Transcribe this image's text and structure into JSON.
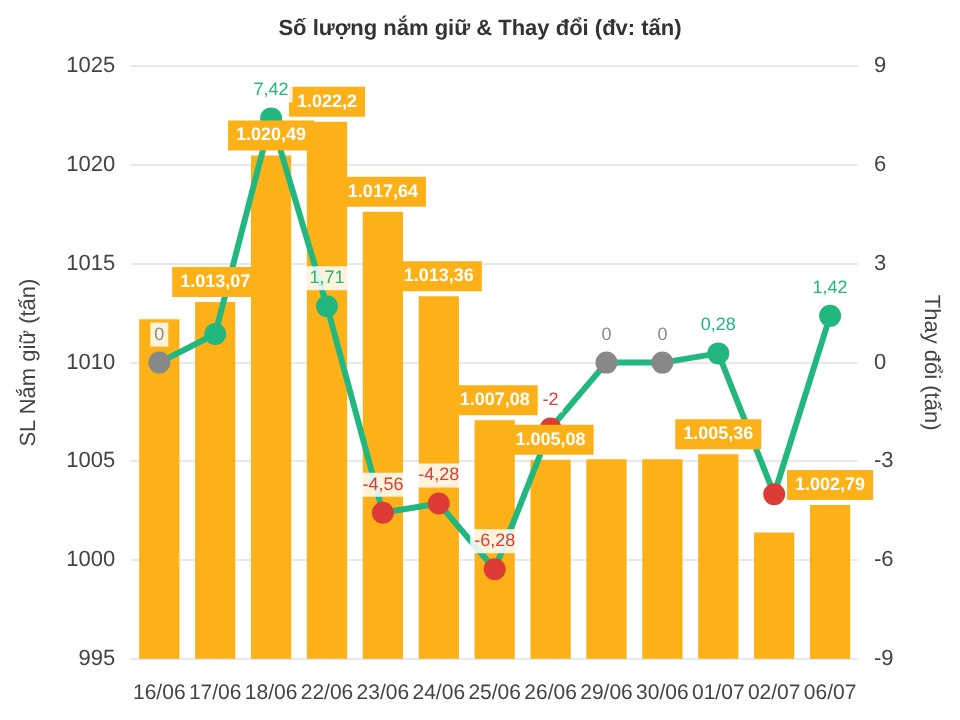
{
  "chart_data": {
    "type": "bar",
    "title": "Số lượng nắm giữ & Thay đổi (đv: tấn)",
    "categories": [
      "16/06",
      "17/06",
      "18/06",
      "22/06",
      "23/06",
      "24/06",
      "25/06",
      "26/06",
      "29/06",
      "30/06",
      "01/07",
      "02/07",
      "06/07"
    ],
    "series": [
      {
        "color": "#fbb117",
        "values": [
          1012.2,
          1013.07,
          1020.49,
          1022.2,
          1017.64,
          1013.36,
          1007.08,
          1005.08,
          1005.1,
          1005.1,
          1005.36,
          1001.4,
          1002.79
        ],
        "value_labels": [
          null,
          "1.013,07",
          "1.020,49",
          "1.022,2",
          "1.017,64",
          "1.013,36",
          "1.007,08",
          "1.005,08",
          null,
          null,
          "1.005,36",
          null,
          "1.002,79"
        ]
      },
      {
        "type": "line",
        "axis": "y2",
        "color": "#22b77f",
        "colors": [
          "#888888",
          "#22b77f",
          "#22b77f",
          "#22b77f",
          "#dd3b35",
          "#dd3b35",
          "#dd3b35",
          "#dd3b35",
          "#888888",
          "#888888",
          "#22b77f",
          "#dd3b35",
          "#22b77f"
        ],
        "values": [
          0,
          0.87,
          7.42,
          1.71,
          -4.56,
          -4.28,
          -6.28,
          -2,
          0,
          0,
          0.28,
          -4,
          1.42
        ],
        "value_labels": [
          "0",
          null,
          "7,42",
          "1,71",
          "-4,56",
          "-4,28",
          "-6,28",
          "-2",
          "0",
          "0",
          "0,28",
          null,
          "1,42"
        ]
      }
    ],
    "ylabel": "SL Nắm giữ (tấn)",
    "y2label": "Thay đổi (tấn)",
    "ylim": [
      995,
      1025
    ],
    "yticks": [
      995,
      1000,
      1005,
      1010,
      1015,
      1020,
      1025
    ],
    "y2lim": [
      -9,
      9
    ],
    "y2ticks": [
      -9,
      -6,
      -3,
      0,
      3,
      6,
      9
    ],
    "grid": "y",
    "legend": false,
    "marker": "circle"
  }
}
